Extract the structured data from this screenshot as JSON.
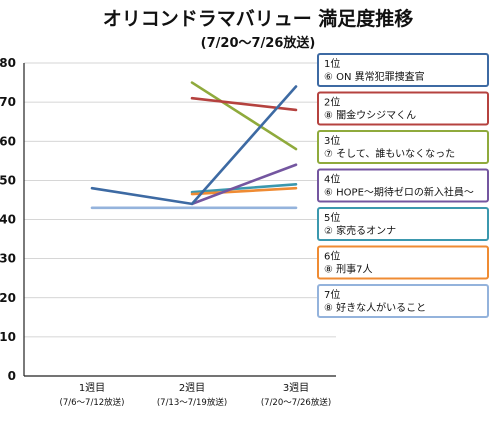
{
  "chart_data": {
    "type": "line",
    "title": "オリコンドラマバリュー 満足度推移",
    "subtitle": "(7/20〜7/26放送)",
    "categories": [
      "1週目",
      "2週目",
      "3週目"
    ],
    "category_sublabels": [
      "(7/6〜7/12放送)",
      "(7/13〜7/19放送)",
      "(7/20〜7/26放送)"
    ],
    "ylim": [
      0,
      80
    ],
    "yticks": [
      0,
      10,
      20,
      30,
      40,
      50,
      60,
      70,
      80
    ],
    "grid": true,
    "legend_position": "right",
    "series": [
      {
        "rank": "1位",
        "name": "⑥ ON 異常犯罪捜査官",
        "color": "#3d6aa3",
        "values": [
          48,
          44,
          74
        ]
      },
      {
        "rank": "2位",
        "name": "⑧ 闇金ウシジマくん",
        "color": "#b5423f",
        "values": [
          null,
          71,
          68
        ]
      },
      {
        "rank": "3位",
        "name": "⑦ そして、誰もいなくなった",
        "color": "#8faa3c",
        "values": [
          null,
          75,
          58
        ]
      },
      {
        "rank": "4位",
        "name": "⑥ HOPE〜期待ゼロの新入社員〜",
        "color": "#7456a0",
        "values": [
          null,
          44,
          54
        ]
      },
      {
        "rank": "5位",
        "name": "② 家売るオンナ",
        "color": "#3b98ae",
        "values": [
          null,
          47,
          49
        ]
      },
      {
        "rank": "6位",
        "name": "⑧ 刑事7人",
        "color": "#ef8b33",
        "values": [
          null,
          46.5,
          48
        ]
      },
      {
        "rank": "7位",
        "name": "⑧ 好きな人がいること",
        "color": "#94b3dc",
        "values": [
          43,
          43,
          43
        ]
      }
    ]
  }
}
